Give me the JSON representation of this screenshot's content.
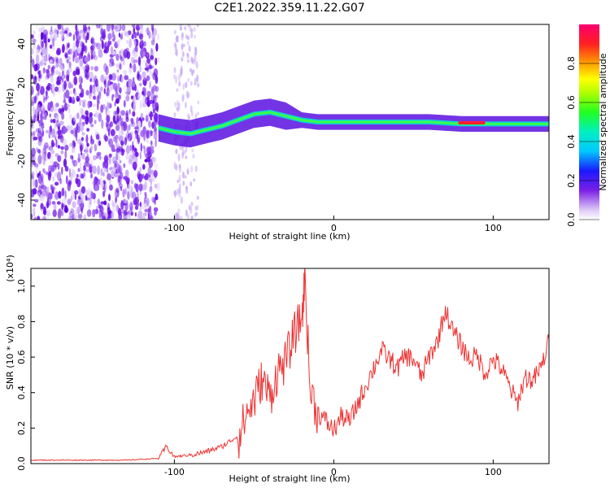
{
  "title": "C2E1.2022.359.11.22.G07",
  "chart_data": [
    {
      "type": "heatmap",
      "xlabel": "Height of straight line (km)",
      "ylabel": "Frequency (Hz)",
      "xlim": [
        -190,
        135
      ],
      "ylim": [
        -50,
        50
      ],
      "x_ticks": [
        -100,
        0,
        100
      ],
      "y_ticks": [
        -40,
        -20,
        0,
        20,
        40
      ],
      "colorbar": {
        "label": "Normalized spectral amplitude",
        "range": [
          0,
          1
        ],
        "ticks": [
          0.0,
          0.2,
          0.4,
          0.6,
          0.8
        ]
      },
      "ridge": {
        "note_points_x_km": [
          -110,
          -100,
          -90,
          -80,
          -70,
          -60,
          -50,
          -40,
          -30,
          -20,
          -10,
          0,
          20,
          40,
          60,
          80,
          100,
          120,
          135
        ],
        "center_freq_hz": [
          -3,
          -5,
          -6,
          -4,
          -2,
          1,
          4,
          5,
          3,
          1,
          0,
          0,
          0,
          0,
          0,
          -1,
          -1,
          -1,
          -1
        ]
      }
    },
    {
      "type": "line",
      "xlabel": "Height of straight line (km)",
      "ylabel": "SNR (10 * v/v)",
      "y_multiplier": "(x10⁴)",
      "xlim": [
        -190,
        135
      ],
      "ylim": [
        0,
        1.1
      ],
      "x_ticks": [
        -100,
        0,
        100
      ],
      "y_ticks": [
        0.0,
        0.2,
        0.4,
        0.6,
        0.8,
        1.0
      ],
      "series": [
        {
          "color": "#ee3333",
          "x": [
            -190,
            -170,
            -150,
            -130,
            -110,
            -105,
            -100,
            -90,
            -80,
            -70,
            -60,
            -55,
            -50,
            -45,
            -40,
            -35,
            -30,
            -25,
            -20,
            -18,
            -15,
            -10,
            -5,
            0,
            5,
            10,
            15,
            20,
            25,
            30,
            35,
            40,
            45,
            50,
            55,
            60,
            65,
            70,
            75,
            80,
            85,
            90,
            95,
            100,
            105,
            110,
            115,
            120,
            125,
            130,
            135
          ],
          "y": [
            0.02,
            0.02,
            0.02,
            0.02,
            0.03,
            0.1,
            0.04,
            0.05,
            0.07,
            0.1,
            0.16,
            0.3,
            0.38,
            0.5,
            0.4,
            0.55,
            0.6,
            0.75,
            0.85,
            1.08,
            0.45,
            0.3,
            0.25,
            0.2,
            0.28,
            0.25,
            0.35,
            0.45,
            0.55,
            0.65,
            0.6,
            0.55,
            0.62,
            0.6,
            0.5,
            0.62,
            0.7,
            0.88,
            0.75,
            0.68,
            0.6,
            0.62,
            0.52,
            0.6,
            0.55,
            0.45,
            0.35,
            0.5,
            0.48,
            0.55,
            0.7
          ]
        }
      ]
    }
  ]
}
